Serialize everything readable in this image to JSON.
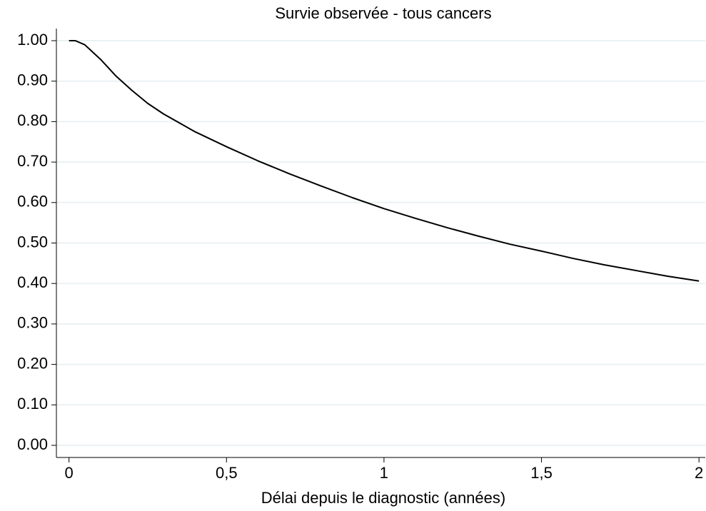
{
  "chart_data": {
    "type": "line",
    "title": "Survie observée - tous cancers",
    "x_label": "Délai depuis le diagnostic (années)",
    "x": [
      0,
      0.02,
      0.05,
      0.1,
      0.15,
      0.2,
      0.25,
      0.3,
      0.4,
      0.5,
      0.6,
      0.7,
      0.8,
      0.9,
      1.0,
      1.1,
      1.2,
      1.3,
      1.4,
      1.5,
      1.6,
      1.7,
      1.8,
      1.9,
      2.0
    ],
    "values": [
      1.0,
      1.0,
      0.99,
      0.954,
      0.912,
      0.877,
      0.845,
      0.819,
      0.775,
      0.738,
      0.703,
      0.671,
      0.641,
      0.612,
      0.585,
      0.561,
      0.538,
      0.517,
      0.497,
      0.48,
      0.462,
      0.446,
      0.432,
      0.418,
      0.406
    ],
    "color": "#000000",
    "xlim": [
      -0.04,
      2.02
    ],
    "ylim": [
      -0.03,
      1.03
    ],
    "xticks": [
      0,
      {
        "value": 0.5,
        "label": "0,5"
      },
      1,
      {
        "value": 1.5,
        "label": "1,5"
      },
      2
    ],
    "yticks": [
      {
        "value": 0,
        "label": "0.00"
      },
      {
        "value": 0.1,
        "label": "0.10"
      },
      {
        "value": 0.2,
        "label": "0.20"
      },
      {
        "value": 0.3,
        "label": "0.30"
      },
      {
        "value": 0.4,
        "label": "0.40"
      },
      {
        "value": 0.5,
        "label": "0.50"
      },
      {
        "value": 0.6,
        "label": "0.60"
      },
      {
        "value": 0.7,
        "label": "0.70"
      },
      {
        "value": 0.8,
        "label": "0.80"
      },
      {
        "value": 0.9,
        "label": "0.90"
      },
      {
        "value": 1.0,
        "label": "1.00"
      }
    ],
    "grid": true
  }
}
